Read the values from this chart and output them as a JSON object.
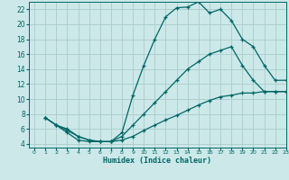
{
  "xlabel": "Humidex (Indice chaleur)",
  "bg_color": "#cce8e8",
  "grid_color": "#aacccc",
  "line_color": "#006666",
  "xlim": [
    -0.5,
    23
  ],
  "ylim": [
    3.5,
    23
  ],
  "xticks": [
    0,
    1,
    2,
    3,
    4,
    5,
    6,
    7,
    8,
    9,
    10,
    11,
    12,
    13,
    14,
    15,
    16,
    17,
    18,
    19,
    20,
    21,
    22,
    23
  ],
  "yticks": [
    4,
    6,
    8,
    10,
    12,
    14,
    16,
    18,
    20,
    22
  ],
  "line1_x": [
    1,
    2,
    3,
    4,
    5,
    6,
    7,
    8,
    9,
    10,
    11,
    12,
    13,
    14,
    15,
    16,
    17,
    18,
    19,
    20,
    21,
    22,
    23
  ],
  "line1_y": [
    7.5,
    6.5,
    6.0,
    5.0,
    4.5,
    4.3,
    4.3,
    5.5,
    10.5,
    14.5,
    18.0,
    21.0,
    22.2,
    22.3,
    23.0,
    21.5,
    22.0,
    20.5,
    18.0,
    17.0,
    14.5,
    12.5,
    12.5
  ],
  "line2_x": [
    1,
    2,
    3,
    4,
    5,
    6,
    7,
    8,
    9,
    10,
    11,
    12,
    13,
    14,
    15,
    16,
    17,
    18,
    19,
    20,
    21,
    22,
    23
  ],
  "line2_y": [
    7.5,
    6.5,
    5.8,
    5.0,
    4.5,
    4.3,
    4.3,
    5.0,
    6.5,
    8.0,
    9.5,
    11.0,
    12.5,
    14.0,
    15.0,
    16.0,
    16.5,
    17.0,
    14.5,
    12.5,
    11.0,
    11.0,
    11.0
  ],
  "line3_x": [
    1,
    2,
    3,
    4,
    5,
    6,
    7,
    8,
    9,
    10,
    11,
    12,
    13,
    14,
    15,
    16,
    17,
    18,
    19,
    20,
    21,
    22,
    23
  ],
  "line3_y": [
    7.5,
    6.5,
    5.5,
    4.5,
    4.3,
    4.3,
    4.3,
    4.5,
    5.0,
    5.8,
    6.5,
    7.2,
    7.8,
    8.5,
    9.2,
    9.8,
    10.3,
    10.5,
    10.8,
    10.8,
    11.0,
    11.0,
    11.0
  ]
}
